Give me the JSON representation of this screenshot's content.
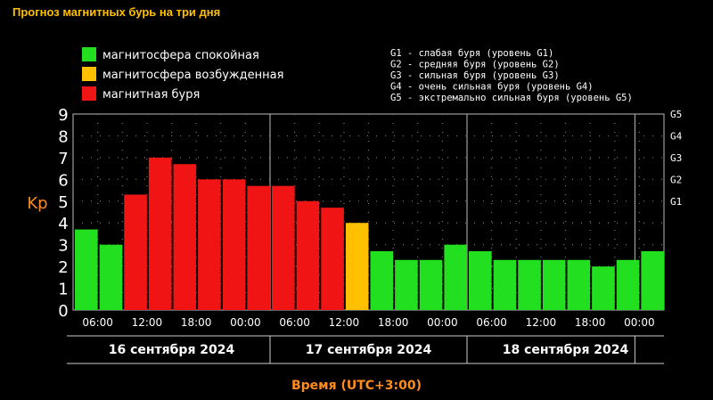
{
  "title": "Прогноз магнитных бурь на три дня",
  "legend": [
    {
      "label": "магнитосфера спокойная",
      "color": "#22e01f"
    },
    {
      "label": "магнитосфера возбужденная",
      "color": "#ffc000"
    },
    {
      "label": "магнитная буря",
      "color": "#f01414"
    }
  ],
  "g_legend": [
    "G1 - слабая буря (уровень G1)",
    "G2 - средняя буря (уровень G2)",
    "G3 - сильная буря (уровень G3)",
    "G4 - очень сильная буря (уровень G4)",
    "G5 - экстремально сильная буря (уровень G5)"
  ],
  "ylabel": "Kp",
  "xlabel": "Время (UTC+3:00)",
  "days": [
    "16 сентября 2024",
    "17 сентября 2024",
    "18 сентября 2024"
  ],
  "colors": {
    "quiet": "#22e01f",
    "active": "#ffc000",
    "storm": "#f01414",
    "title": "#ffc000",
    "axis_label": "#ff8c1a"
  },
  "chart_data": {
    "type": "bar",
    "title": "Прогноз магнитных бурь на три дня",
    "xlabel": "Время (UTC+3:00)",
    "ylabel": "Kp",
    "ylim": [
      0,
      9
    ],
    "y_ticks": [
      "0",
      "1",
      "2",
      "3",
      "4",
      "5",
      "6",
      "7",
      "8",
      "9"
    ],
    "g_ticks": [
      {
        "label": "G1",
        "kp": 5
      },
      {
        "label": "G2",
        "kp": 6
      },
      {
        "label": "G3",
        "kp": 7
      },
      {
        "label": "G4",
        "kp": 8
      },
      {
        "label": "G5",
        "kp": 9
      }
    ],
    "x_ticks": [
      "06:00",
      "12:00",
      "18:00",
      "00:00",
      "06:00",
      "12:00",
      "18:00",
      "00:00",
      "06:00",
      "12:00",
      "18:00",
      "00:00"
    ],
    "values": [
      3.7,
      3.0,
      5.3,
      7.0,
      6.7,
      6.0,
      6.0,
      5.7,
      5.7,
      5.0,
      4.7,
      4.0,
      2.7,
      2.3,
      2.3,
      3.0,
      2.7,
      2.3,
      2.3,
      2.3,
      2.3,
      2.0,
      2.3,
      2.7
    ],
    "levels": [
      "quiet",
      "quiet",
      "storm",
      "storm",
      "storm",
      "storm",
      "storm",
      "storm",
      "storm",
      "storm",
      "storm",
      "active",
      "quiet",
      "quiet",
      "quiet",
      "quiet",
      "quiet",
      "quiet",
      "quiet",
      "quiet",
      "quiet",
      "quiet",
      "quiet",
      "quiet"
    ],
    "grid": true,
    "legend": "top-left"
  }
}
